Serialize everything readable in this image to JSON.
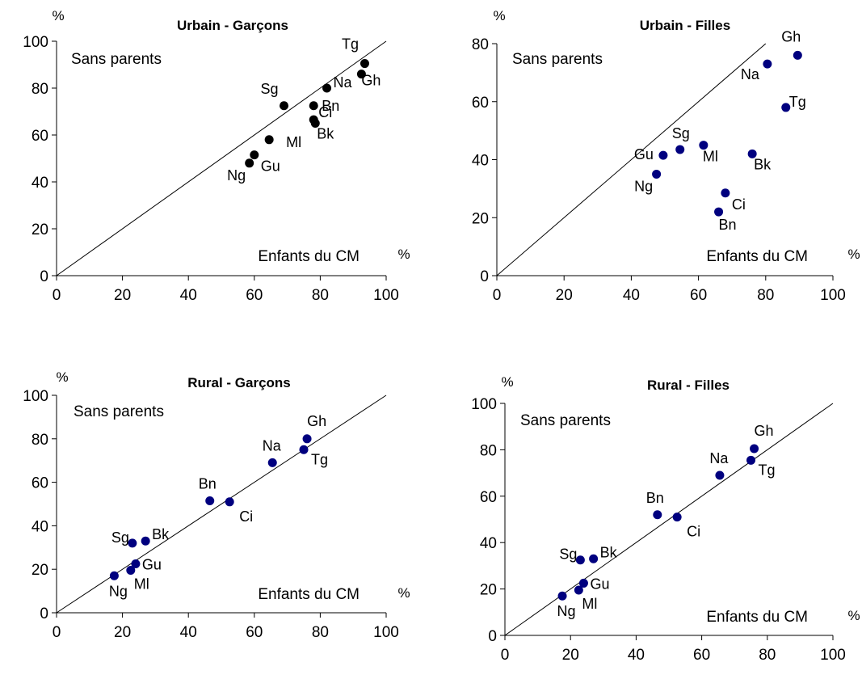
{
  "chart_data": [
    {
      "type": "scatter",
      "title": "Urbain - Garçons",
      "xlabel": "Enfants du CM",
      "ylabel": "Sans parents",
      "x_unit": "%",
      "y_unit": "%",
      "xlim": [
        0,
        100
      ],
      "ylim": [
        0,
        100
      ],
      "xticks": [
        "0",
        "20",
        "40",
        "60",
        "80",
        "100"
      ],
      "yticks": [
        "0",
        "20",
        "40",
        "60",
        "80",
        "100"
      ],
      "diagonal": true,
      "marker_color": "#000000",
      "points": [
        {
          "label": "Tg",
          "x": 93.5,
          "y": 90.5
        },
        {
          "label": "Gh",
          "x": 92.5,
          "y": 86
        },
        {
          "label": "Na",
          "x": 82,
          "y": 80
        },
        {
          "label": "Sg",
          "x": 69,
          "y": 72.5
        },
        {
          "label": "Ci",
          "x": 78,
          "y": 72.5
        },
        {
          "label": "Bn",
          "x": 78,
          "y": 66.5
        },
        {
          "label": "Bk",
          "x": 78.5,
          "y": 65
        },
        {
          "label": "Ml",
          "x": 64.5,
          "y": 58
        },
        {
          "label": "Gu",
          "x": 60,
          "y": 51.5
        },
        {
          "label": "Ng",
          "x": 58.5,
          "y": 48
        }
      ]
    },
    {
      "type": "scatter",
      "title": "Urbain - Filles",
      "xlabel": "Enfants du CM",
      "ylabel": "Sans parents",
      "x_unit": "%",
      "y_unit": "%",
      "xlim": [
        0,
        100
      ],
      "ylim": [
        0,
        80
      ],
      "xticks": [
        "0",
        "20",
        "40",
        "60",
        "80",
        "100"
      ],
      "yticks": [
        "0",
        "20",
        "40",
        "60",
        "80"
      ],
      "diagonal": true,
      "marker_color": "#00007f",
      "points": [
        {
          "label": "Gh",
          "x": 89.5,
          "y": 76
        },
        {
          "label": "Na",
          "x": 80.5,
          "y": 73
        },
        {
          "label": "Tg",
          "x": 86,
          "y": 58
        },
        {
          "label": "Sg",
          "x": 54.5,
          "y": 43.5
        },
        {
          "label": "Gu",
          "x": 49.5,
          "y": 41.5
        },
        {
          "label": "Ml",
          "x": 61.5,
          "y": 45
        },
        {
          "label": "Bk",
          "x": 76,
          "y": 42
        },
        {
          "label": "Ng",
          "x": 47.5,
          "y": 35
        },
        {
          "label": "Ci",
          "x": 68,
          "y": 28.5
        },
        {
          "label": "Bn",
          "x": 66,
          "y": 22
        }
      ]
    },
    {
      "type": "scatter",
      "title": "Rural - Garçons",
      "xlabel": "Enfants du CM",
      "ylabel": "Sans parents",
      "x_unit": "%",
      "y_unit": "%",
      "xlim": [
        0,
        100
      ],
      "ylim": [
        0,
        100
      ],
      "xticks": [
        "0",
        "20",
        "40",
        "60",
        "80",
        "100"
      ],
      "yticks": [
        "0",
        "20",
        "40",
        "60",
        "80",
        "100"
      ],
      "diagonal": true,
      "marker_color": "#00007f",
      "points": [
        {
          "label": "Gh",
          "x": 76,
          "y": 80
        },
        {
          "label": "Tg",
          "x": 75,
          "y": 75
        },
        {
          "label": "Na",
          "x": 65.5,
          "y": 69
        },
        {
          "label": "Bn",
          "x": 46.5,
          "y": 51.5
        },
        {
          "label": "Ci",
          "x": 52.5,
          "y": 51
        },
        {
          "label": "Sg",
          "x": 23,
          "y": 32
        },
        {
          "label": "Bk",
          "x": 27,
          "y": 33
        },
        {
          "label": "Gu",
          "x": 24,
          "y": 22.5
        },
        {
          "label": "Ml",
          "x": 22.5,
          "y": 19.5
        },
        {
          "label": "Ng",
          "x": 17.5,
          "y": 17
        }
      ]
    },
    {
      "type": "scatter",
      "title": "Rural - Filles",
      "xlabel": "Enfants du CM",
      "ylabel": "Sans parents",
      "x_unit": "%",
      "y_unit": "%",
      "xlim": [
        0,
        100
      ],
      "ylim": [
        0,
        100
      ],
      "xticks": [
        "0",
        "20",
        "40",
        "60",
        "80",
        "100"
      ],
      "yticks": [
        "0",
        "20",
        "40",
        "60",
        "80",
        "100"
      ],
      "diagonal": true,
      "marker_color": "#00007f",
      "points": [
        {
          "label": "Gh",
          "x": 76,
          "y": 80.5
        },
        {
          "label": "Tg",
          "x": 75,
          "y": 75.5
        },
        {
          "label": "Na",
          "x": 65.5,
          "y": 69
        },
        {
          "label": "Bn",
          "x": 46.5,
          "y": 52
        },
        {
          "label": "Ci",
          "x": 52.5,
          "y": 51
        },
        {
          "label": "Sg",
          "x": 23,
          "y": 32.5
        },
        {
          "label": "Bk",
          "x": 27,
          "y": 33
        },
        {
          "label": "Gu",
          "x": 24,
          "y": 22.5
        },
        {
          "label": "Ml",
          "x": 22.5,
          "y": 19.5
        },
        {
          "label": "Ng",
          "x": 17.5,
          "y": 17
        }
      ]
    }
  ]
}
